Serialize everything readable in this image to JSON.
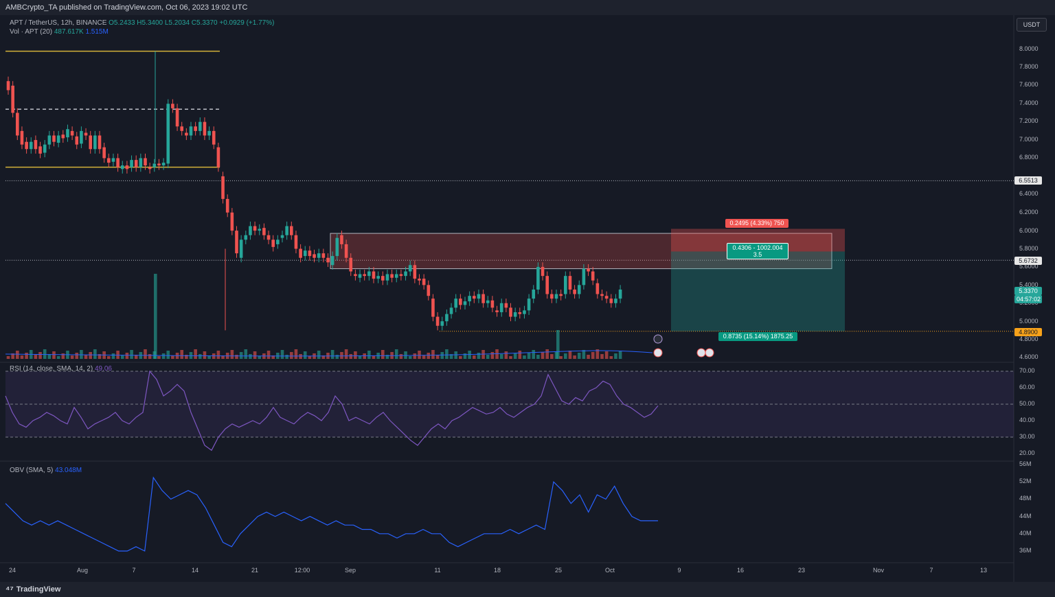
{
  "header": {
    "published": "AMBCrypto_TA published on TradingView.com, Oct 06, 2023 19:02 UTC"
  },
  "legend": {
    "symbol": "APT / TetherUS, 12h, BINANCE",
    "ohlc": "O5.2433  H5.3400  L5.2034  C5.3370  +0.0929 (+1.77%)",
    "volume_label": "Vol · APT (20)",
    "volume_value_1": "487.617K",
    "volume_value_2": "1.515M",
    "rsi_label": "RSI (14, close, SMA, 14, 2)",
    "rsi_value": "49.06",
    "obv_label": "OBV (SMA, 5)",
    "obv_value": "43.048M"
  },
  "currency_button": "USDT",
  "price_axis": [
    "8.0000",
    "7.8000",
    "7.6000",
    "7.4000",
    "7.2000",
    "7.0000",
    "6.8000",
    "6.4000",
    "6.2000",
    "6.0000",
    "5.8000",
    "5.6000",
    "5.4000",
    "5.2000",
    "5.0000",
    "4.8000",
    "4.6000"
  ],
  "price_tags": {
    "level_high": "6.5513",
    "level_mid": "5.6732",
    "current": "5.3370",
    "countdown": "04:57:02",
    "level_low": "4.8900"
  },
  "rsi_axis": [
    "70.00",
    "60.00",
    "50.00",
    "40.00",
    "30.00",
    "20.00"
  ],
  "obv_axis": [
    "56M",
    "52M",
    "48M",
    "44M",
    "40M",
    "36M"
  ],
  "time_axis": [
    "24",
    "Aug",
    "7",
    "14",
    "21",
    "12:00",
    "Sep",
    "11",
    "18",
    "25",
    "Oct",
    "9",
    "16",
    "23",
    "Nov",
    "7",
    "13"
  ],
  "position_tool": {
    "stop": "0.2495 (4.33%) 750",
    "entry_line1": "0.4306 - 1002.004",
    "entry_line2": "3.5",
    "target": "0.8735 (15.14%) 1875.25"
  },
  "footer": {
    "brand": "TradingView"
  },
  "colors": {
    "up": "#26a69a",
    "down": "#ef5350",
    "gold": "#d4b23a",
    "rsi": "#7e57c2",
    "obv": "#2962ff",
    "background": "#161a25"
  },
  "chart_data": {
    "type": "candlestick",
    "symbol": "APT / TetherUS",
    "interval": "12h",
    "ylim": [
      4.6,
      8.0
    ],
    "candles": [
      [
        7.65,
        7.55
      ],
      [
        7.6,
        7.3
      ],
      [
        7.3,
        7.05
      ],
      [
        7.1,
        6.95
      ],
      [
        6.98,
        6.9
      ],
      [
        6.9,
        6.98
      ],
      [
        7.0,
        6.9
      ],
      [
        6.93,
        6.85
      ],
      [
        6.86,
        6.95
      ],
      [
        6.95,
        7.05
      ],
      [
        7.05,
        6.98
      ],
      [
        6.97,
        7.05
      ],
      [
        7.06,
        7.02
      ],
      [
        7.03,
        7.12
      ],
      [
        7.1,
        7.05
      ],
      [
        7.04,
        6.95
      ],
      [
        6.96,
        7.1
      ],
      [
        7.08,
        7.05
      ],
      [
        7.05,
        6.9
      ],
      [
        6.9,
        7.05
      ],
      [
        7.05,
        6.9
      ],
      [
        6.92,
        6.8
      ],
      [
        6.8,
        6.75
      ],
      [
        6.76,
        6.8
      ],
      [
        6.8,
        6.7
      ],
      [
        6.68,
        6.72
      ],
      [
        6.72,
        6.68
      ],
      [
        6.7,
        6.78
      ],
      [
        6.78,
        6.7
      ],
      [
        6.7,
        6.8
      ],
      [
        6.8,
        6.72
      ],
      [
        6.7,
        6.68
      ],
      [
        6.7,
        6.74
      ],
      [
        6.74,
        6.72
      ],
      [
        6.72,
        6.75
      ],
      [
        6.74,
        7.4
      ],
      [
        7.4,
        7.35
      ],
      [
        7.35,
        7.15
      ],
      [
        7.15,
        7.1
      ],
      [
        7.08,
        7.05
      ],
      [
        7.05,
        7.15
      ],
      [
        7.15,
        7.1
      ],
      [
        7.1,
        7.2
      ],
      [
        7.2,
        7.05
      ],
      [
        7.05,
        7.1
      ],
      [
        7.1,
        6.95
      ],
      [
        6.92,
        6.7
      ],
      [
        6.6,
        6.35
      ],
      [
        6.35,
        6.2
      ],
      [
        6.2,
        6.0
      ],
      [
        6.0,
        5.75
      ],
      [
        5.7,
        5.9
      ],
      [
        5.9,
        5.95
      ],
      [
        5.95,
        6.05
      ],
      [
        6.05,
        6.0
      ],
      [
        6.0,
        6.02
      ],
      [
        6.03,
        5.95
      ],
      [
        5.95,
        5.9
      ],
      [
        5.9,
        5.82
      ],
      [
        5.85,
        5.9
      ],
      [
        5.92,
        5.95
      ],
      [
        5.95,
        6.05
      ],
      [
        6.05,
        5.95
      ],
      [
        5.95,
        5.8
      ],
      [
        5.8,
        5.7
      ],
      [
        5.72,
        5.78
      ],
      [
        5.78,
        5.72
      ],
      [
        5.74,
        5.7
      ],
      [
        5.7,
        5.75
      ],
      [
        5.75,
        5.7
      ],
      [
        5.7,
        5.65
      ],
      [
        5.62,
        5.72
      ],
      [
        5.72,
        5.92
      ],
      [
        5.95,
        5.85
      ],
      [
        5.85,
        5.7
      ],
      [
        5.7,
        5.55
      ],
      [
        5.52,
        5.5
      ],
      [
        5.48,
        5.52
      ],
      [
        5.52,
        5.5
      ],
      [
        5.5,
        5.55
      ],
      [
        5.55,
        5.47
      ],
      [
        5.47,
        5.5
      ],
      [
        5.5,
        5.45
      ],
      [
        5.45,
        5.52
      ],
      [
        5.52,
        5.48
      ],
      [
        5.48,
        5.52
      ],
      [
        5.52,
        5.5
      ],
      [
        5.5,
        5.55
      ],
      [
        5.55,
        5.62
      ],
      [
        5.62,
        5.47
      ],
      [
        5.47,
        5.45
      ],
      [
        5.47,
        5.4
      ],
      [
        5.4,
        5.28
      ],
      [
        5.25,
        5.05
      ],
      [
        5.05,
        4.95
      ],
      [
        4.95,
        5.0
      ],
      [
        5.0,
        5.08
      ],
      [
        5.08,
        5.15
      ],
      [
        5.15,
        5.25
      ],
      [
        5.25,
        5.18
      ],
      [
        5.18,
        5.22
      ],
      [
        5.22,
        5.28
      ],
      [
        5.28,
        5.25
      ],
      [
        5.25,
        5.3
      ],
      [
        5.3,
        5.2
      ],
      [
        5.2,
        5.23
      ],
      [
        5.23,
        5.15
      ],
      [
        5.12,
        5.1
      ],
      [
        5.1,
        5.2
      ],
      [
        5.2,
        5.15
      ],
      [
        5.15,
        5.05
      ],
      [
        5.05,
        5.1
      ],
      [
        5.1,
        5.08
      ],
      [
        5.08,
        5.12
      ],
      [
        5.12,
        5.25
      ],
      [
        5.25,
        5.35
      ],
      [
        5.35,
        5.6
      ],
      [
        5.6,
        5.5
      ],
      [
        5.5,
        5.3
      ],
      [
        5.3,
        5.25
      ],
      [
        5.25,
        5.3
      ],
      [
        5.3,
        5.28
      ],
      [
        5.3,
        5.5
      ],
      [
        5.5,
        5.35
      ],
      [
        5.35,
        5.3
      ],
      [
        5.3,
        5.4
      ],
      [
        5.4,
        5.58
      ],
      [
        5.58,
        5.55
      ],
      [
        5.55,
        5.45
      ],
      [
        5.42,
        5.3
      ],
      [
        5.3,
        5.28
      ],
      [
        5.28,
        5.25
      ],
      [
        5.25,
        5.2
      ],
      [
        5.2,
        5.25
      ],
      [
        5.25,
        5.35
      ]
    ],
    "levels": [
      {
        "price": 7.98,
        "color": "gold"
      },
      {
        "price": 7.34,
        "color": "white-dashed"
      },
      {
        "price": 6.7,
        "color": "gold"
      },
      {
        "price": 6.5513,
        "color": "dotted"
      },
      {
        "price": 5.6732,
        "color": "dotted"
      },
      {
        "price": 4.89,
        "color": "dotted-gold"
      }
    ],
    "rsi": [
      55,
      45,
      38,
      36,
      40,
      42,
      45,
      43,
      40,
      38,
      48,
      42,
      35,
      38,
      40,
      42,
      45,
      40,
      38,
      42,
      45,
      70,
      65,
      55,
      58,
      62,
      58,
      45,
      35,
      25,
      22,
      30,
      35,
      38,
      36,
      38,
      40,
      38,
      42,
      48,
      42,
      40,
      38,
      42,
      45,
      43,
      40,
      45,
      55,
      50,
      40,
      42,
      40,
      38,
      42,
      45,
      40,
      36,
      32,
      28,
      25,
      30,
      35,
      38,
      35,
      40,
      42,
      45,
      48,
      46,
      44,
      45,
      48,
      44,
      42,
      45,
      48,
      50,
      55,
      68,
      60,
      52,
      50,
      54,
      52,
      58,
      60,
      64,
      62,
      55,
      50,
      48,
      45,
      42,
      44,
      49
    ]
  }
}
